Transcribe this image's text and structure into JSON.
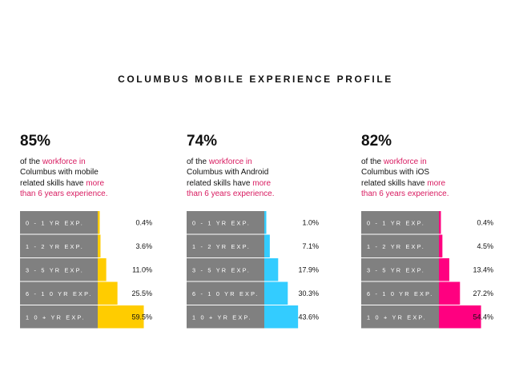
{
  "title": "COLUMBUS MOBILE EXPERIENCE PROFILE",
  "colors": {
    "mobile": "#ffcc00",
    "android": "#33ccff",
    "ios": "#ff0080",
    "label_box": "#808080",
    "highlight": "#d81b60"
  },
  "panels": [
    {
      "percent": "85%",
      "desc": {
        "p1": "of the ",
        "h1": "workforce in",
        "p2": "Columbus with mobile",
        "p3": "related skills have ",
        "h2": "more",
        "h3": "than 6 years experience."
      }
    },
    {
      "percent": "74%",
      "desc": {
        "p1": "of the ",
        "h1": "workforce in",
        "p2": "Columbus with Android",
        "p3": "related skills have ",
        "h2": "more",
        "h3": "than 6 years experience."
      }
    },
    {
      "percent": "82%",
      "desc": {
        "p1": "of the ",
        "h1": "workforce in",
        "p2": "Columbus with iOS",
        "p3": "related skills have ",
        "h2": "more",
        "h3": "than 6 years experience."
      }
    }
  ],
  "chart_data": [
    {
      "type": "bar",
      "categories": [
        "0-1 YR EXP.",
        "1-2 YR EXP.",
        "3-5 YR EXP.",
        "6-10 YR EXP.",
        "10+ YR EXP."
      ],
      "values": [
        0.4,
        3.6,
        11.0,
        25.5,
        59.5
      ],
      "value_labels": [
        "0.4%",
        "3.6%",
        "11.0%",
        "25.5%",
        "59.5%"
      ],
      "color": "#ffcc00"
    },
    {
      "type": "bar",
      "categories": [
        "0-1 YR EXP.",
        "1-2 YR EXP.",
        "3-5 YR EXP.",
        "6-10 YR EXP.",
        "10+ YR EXP."
      ],
      "values": [
        1.0,
        7.1,
        17.9,
        30.3,
        43.6
      ],
      "value_labels": [
        "1.0%",
        "7.1%",
        "17.9%",
        "30.3%",
        "43.6%"
      ],
      "color": "#33ccff"
    },
    {
      "type": "bar",
      "categories": [
        "0-1 YR EXP.",
        "1-2 YR EXP.",
        "3-5 YR EXP.",
        "6-10 YR EXP.",
        "10+ YR EXP."
      ],
      "values": [
        0.4,
        4.5,
        13.4,
        27.2,
        54.4
      ],
      "value_labels": [
        "0.4%",
        "4.5%",
        "13.4%",
        "27.2%",
        "54.4%"
      ],
      "color": "#ff0080"
    }
  ]
}
